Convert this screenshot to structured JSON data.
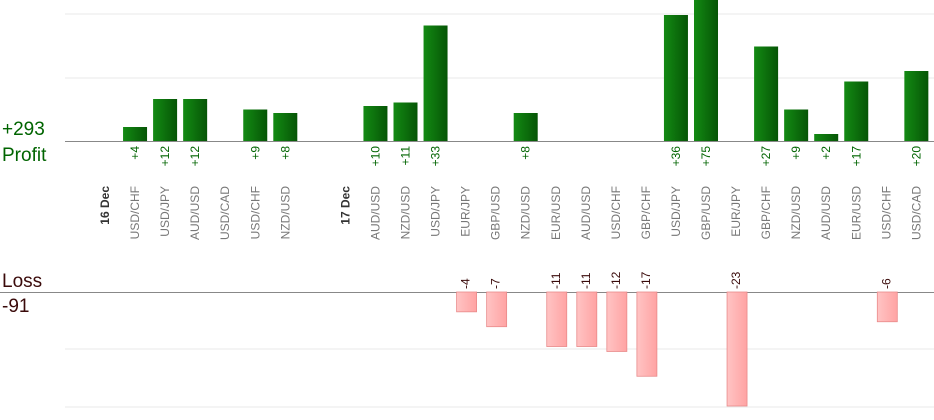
{
  "summary": {
    "total_profit": "+293",
    "profit_label": "Profit",
    "loss_label": "Loss",
    "total_loss": "-91"
  },
  "colors": {
    "profit_bar": "#0b6e0b",
    "profit_text": "#006400",
    "loss_bar": "#ffb3b3",
    "loss_border": "#e98a8a",
    "loss_text": "#3a0a0a",
    "grid": "#e8e8e8",
    "axis": "#888888",
    "pair_text": "#777777",
    "date_text": "#333333"
  },
  "chart_data": {
    "type": "bar",
    "profit_scale_max": 36,
    "loss_scale_max": 23,
    "slots": [
      {
        "kind": "date",
        "label": "16 Dec"
      },
      {
        "kind": "pair",
        "label": "USD/CHF",
        "value": 4,
        "label_text": "+4"
      },
      {
        "kind": "pair",
        "label": "USD/JPY",
        "value": 12,
        "label_text": "+12"
      },
      {
        "kind": "pair",
        "label": "AUD/USD",
        "value": 12,
        "label_text": "+12"
      },
      {
        "kind": "pair",
        "label": "USD/CAD",
        "value": 0,
        "label_text": ""
      },
      {
        "kind": "pair",
        "label": "USD/CHF",
        "value": 9,
        "label_text": "+9"
      },
      {
        "kind": "pair",
        "label": "NZD/USD",
        "value": 8,
        "label_text": "+8"
      },
      {
        "kind": "gap",
        "label": ""
      },
      {
        "kind": "date",
        "label": "17 Dec"
      },
      {
        "kind": "pair",
        "label": "AUD/USD",
        "value": 10,
        "label_text": "+10"
      },
      {
        "kind": "pair",
        "label": "NZD/USD",
        "value": 11,
        "label_text": "+11"
      },
      {
        "kind": "pair",
        "label": "USD/JPY",
        "value": 33,
        "label_text": "+33"
      },
      {
        "kind": "pair",
        "label": "EUR/JPY",
        "value": -4,
        "label_text": "-4"
      },
      {
        "kind": "pair",
        "label": "GBP/USD",
        "value": -7,
        "label_text": "-7"
      },
      {
        "kind": "pair",
        "label": "NZD/USD",
        "value": 8,
        "label_text": "+8"
      },
      {
        "kind": "pair",
        "label": "EUR/USD",
        "value": -11,
        "label_text": "-11"
      },
      {
        "kind": "pair",
        "label": "AUD/USD",
        "value": -11,
        "label_text": "-11"
      },
      {
        "kind": "pair",
        "label": "USD/CHF",
        "value": -12,
        "label_text": "-12"
      },
      {
        "kind": "pair",
        "label": "GBP/CHF",
        "value": -17,
        "label_text": "-17"
      },
      {
        "kind": "pair",
        "label": "USD/JPY",
        "value": 36,
        "label_text": "+36"
      },
      {
        "kind": "pair",
        "label": "GBP/USD",
        "value": 75,
        "label_text": "+75"
      },
      {
        "kind": "pair",
        "label": "EUR/JPY",
        "value": -23,
        "label_text": "-23"
      },
      {
        "kind": "pair",
        "label": "GBP/CHF",
        "value": 27,
        "label_text": "+27"
      },
      {
        "kind": "pair",
        "label": "NZD/USD",
        "value": 9,
        "label_text": "+9"
      },
      {
        "kind": "pair",
        "label": "AUD/USD",
        "value": 2,
        "label_text": "+2"
      },
      {
        "kind": "pair",
        "label": "EUR/USD",
        "value": 17,
        "label_text": "+17"
      },
      {
        "kind": "pair",
        "label": "USD/CHF",
        "value": -6,
        "label_text": "-6"
      },
      {
        "kind": "pair",
        "label": "USD/CAD",
        "value": 20,
        "label_text": "+20"
      }
    ]
  }
}
